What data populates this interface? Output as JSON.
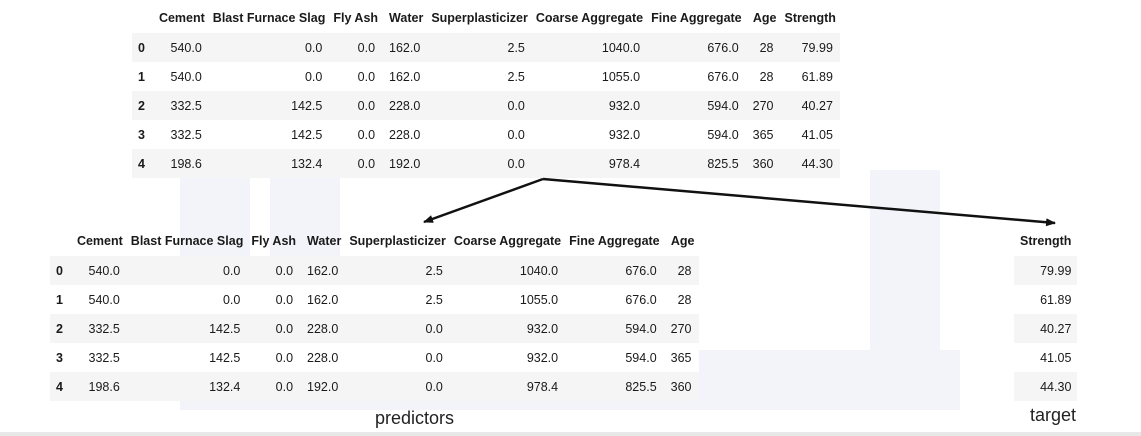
{
  "columns": [
    "Cement",
    "Blast Furnace Slag",
    "Fly Ash",
    "Water",
    "Superplasticizer",
    "Coarse Aggregate",
    "Fine Aggregate",
    "Age",
    "Strength"
  ],
  "rows": [
    {
      "index": "0",
      "values": [
        "540.0",
        "0.0",
        "0.0",
        "162.0",
        "2.5",
        "1040.0",
        "676.0",
        "28",
        "79.99"
      ]
    },
    {
      "index": "1",
      "values": [
        "540.0",
        "0.0",
        "0.0",
        "162.0",
        "2.5",
        "1055.0",
        "676.0",
        "28",
        "61.89"
      ]
    },
    {
      "index": "2",
      "values": [
        "332.5",
        "142.5",
        "0.0",
        "228.0",
        "0.0",
        "932.0",
        "594.0",
        "270",
        "40.27"
      ]
    },
    {
      "index": "3",
      "values": [
        "332.5",
        "142.5",
        "0.0",
        "228.0",
        "0.0",
        "932.0",
        "594.0",
        "365",
        "41.05"
      ]
    },
    {
      "index": "4",
      "values": [
        "198.6",
        "132.4",
        "0.0",
        "192.0",
        "0.0",
        "978.4",
        "825.5",
        "360",
        "44.30"
      ]
    }
  ],
  "labels": {
    "predictors": "predictors",
    "target": "target"
  },
  "colors": {
    "stripe": "#f5f5f5",
    "arrow": "#111111"
  }
}
